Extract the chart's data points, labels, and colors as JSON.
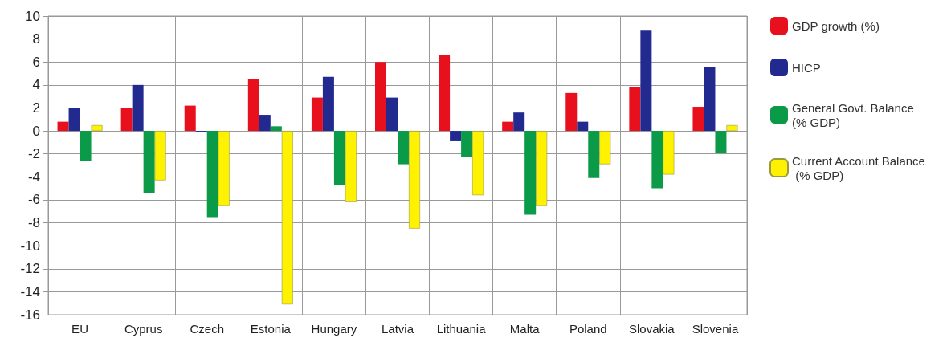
{
  "chart_data": {
    "type": "bar",
    "categories": [
      "EU",
      "Cyprus",
      "Czech",
      "Estonia",
      "Hungary",
      "Latvia",
      "Lithuania",
      "Malta",
      "Poland",
      "Slovakia",
      "Slovenia"
    ],
    "series": [
      {
        "name": "GDP growth (%)",
        "color": "#e8101c",
        "values": [
          0.8,
          2.0,
          2.2,
          4.5,
          2.9,
          6.0,
          6.6,
          0.8,
          3.3,
          3.8,
          2.1
        ]
      },
      {
        "name": "HICP",
        "color": "#232a8f",
        "values": [
          2.0,
          4.0,
          -0.1,
          1.4,
          4.7,
          2.9,
          -0.9,
          1.6,
          0.8,
          8.8,
          5.6
        ]
      },
      {
        "name": "General Govt. Balance (% GDP)",
        "color": "#0a9a48",
        "values": [
          -2.6,
          -5.4,
          -7.5,
          0.4,
          -4.7,
          -2.9,
          -2.3,
          -7.3,
          -4.1,
          -5.0,
          -1.9
        ]
      },
      {
        "name": "Current Account Balance (% GDP)",
        "color": "#fff200",
        "values": [
          0.5,
          -4.3,
          -6.5,
          -15.1,
          -6.2,
          -8.5,
          -5.6,
          -6.5,
          -2.9,
          -3.8,
          0.5
        ]
      }
    ],
    "ylim": [
      -16,
      10
    ],
    "yticks": [
      -16,
      -14,
      -12,
      -10,
      -8,
      -6,
      -4,
      -2,
      0,
      2,
      4,
      6,
      8,
      10
    ],
    "grid": true,
    "legend": "right"
  }
}
